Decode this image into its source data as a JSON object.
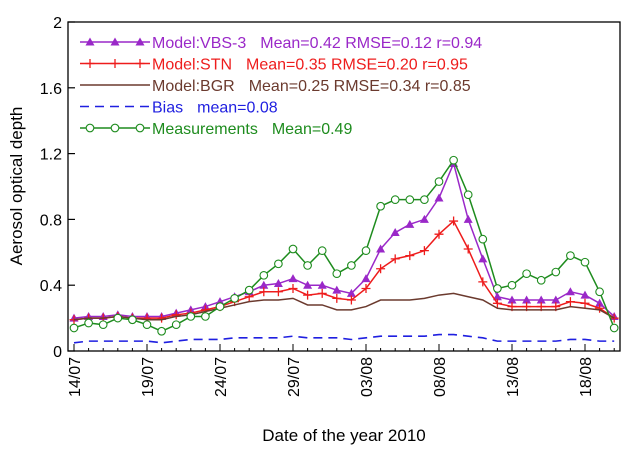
{
  "chart_data": {
    "type": "line",
    "y_label": "Aerosol optical depth",
    "x_label": "Date of the year 2010",
    "categories": [
      "14/07",
      null,
      null,
      null,
      null,
      "19/07",
      null,
      null,
      null,
      null,
      "24/07",
      null,
      null,
      null,
      null,
      "29/07",
      null,
      null,
      null,
      null,
      "03/08",
      null,
      null,
      null,
      null,
      "08/08",
      null,
      null,
      null,
      null,
      "13/08",
      null,
      null,
      null,
      null,
      "18/08",
      null,
      null
    ],
    "ylim": [
      0,
      2
    ],
    "yticks": [
      0,
      0.4,
      0.8,
      1.2,
      1.6,
      2
    ],
    "series": [
      {
        "name": "Model:VBS-3",
        "stats": "Mean=0.42  RMSE=0.12 r=0.94",
        "color": "#9a28c8",
        "marker": "triangle",
        "dash": false,
        "values": [
          0.2,
          0.21,
          0.21,
          0.22,
          0.21,
          0.21,
          0.21,
          0.23,
          0.25,
          0.27,
          0.3,
          0.33,
          0.36,
          0.4,
          0.41,
          0.44,
          0.4,
          0.4,
          0.37,
          0.35,
          0.44,
          0.62,
          0.72,
          0.77,
          0.8,
          0.93,
          1.14,
          0.8,
          0.56,
          0.33,
          0.31,
          0.31,
          0.31,
          0.31,
          0.36,
          0.34,
          0.29,
          0.21
        ]
      },
      {
        "name": "Model:STN",
        "stats": "Mean=0.35  RMSE=0.20 r=0.95",
        "color": "#ee1c1c",
        "marker": "plus",
        "dash": false,
        "values": [
          0.19,
          0.2,
          0.2,
          0.21,
          0.2,
          0.2,
          0.2,
          0.22,
          0.23,
          0.25,
          0.27,
          0.3,
          0.33,
          0.36,
          0.36,
          0.38,
          0.34,
          0.35,
          0.32,
          0.31,
          0.38,
          0.5,
          0.56,
          0.58,
          0.61,
          0.71,
          0.79,
          0.62,
          0.42,
          0.29,
          0.27,
          0.27,
          0.27,
          0.27,
          0.3,
          0.29,
          0.26,
          0.2
        ]
      },
      {
        "name": "Model:BGR",
        "stats": "Mean=0.25  RMSE=0.34 r=0.85",
        "color": "#6b3a2e",
        "marker": "none",
        "dash": false,
        "values": [
          0.19,
          0.2,
          0.2,
          0.21,
          0.2,
          0.19,
          0.19,
          0.21,
          0.22,
          0.24,
          0.26,
          0.28,
          0.3,
          0.31,
          0.31,
          0.32,
          0.28,
          0.28,
          0.25,
          0.25,
          0.27,
          0.31,
          0.31,
          0.31,
          0.32,
          0.34,
          0.35,
          0.33,
          0.31,
          0.26,
          0.25,
          0.25,
          0.25,
          0.25,
          0.27,
          0.26,
          0.25,
          0.2
        ]
      },
      {
        "name": "Bias",
        "stats": "mean=0.08",
        "color": "#1f1fe0",
        "marker": "none",
        "dash": true,
        "values": [
          0.05,
          0.06,
          0.06,
          0.06,
          0.06,
          0.06,
          0.05,
          0.06,
          0.07,
          0.07,
          0.07,
          0.08,
          0.08,
          0.08,
          0.08,
          0.09,
          0.08,
          0.08,
          0.08,
          0.07,
          0.08,
          0.09,
          0.09,
          0.09,
          0.09,
          0.1,
          0.1,
          0.09,
          0.08,
          0.06,
          0.06,
          0.06,
          0.06,
          0.06,
          0.07,
          0.07,
          0.06,
          0.06
        ]
      },
      {
        "name": "Measurements",
        "stats": "Mean=0.49",
        "color": "#1e8c1e",
        "marker": "circle",
        "dash": false,
        "values": [
          0.14,
          0.17,
          0.16,
          0.2,
          0.19,
          0.16,
          0.12,
          0.16,
          0.21,
          0.21,
          0.27,
          0.32,
          0.37,
          0.46,
          0.53,
          0.62,
          0.52,
          0.61,
          0.47,
          0.52,
          0.61,
          0.88,
          0.92,
          0.92,
          0.92,
          1.03,
          1.16,
          0.95,
          0.68,
          0.38,
          0.4,
          0.47,
          0.43,
          0.48,
          0.58,
          0.54,
          0.36,
          0.14
        ]
      }
    ]
  }
}
